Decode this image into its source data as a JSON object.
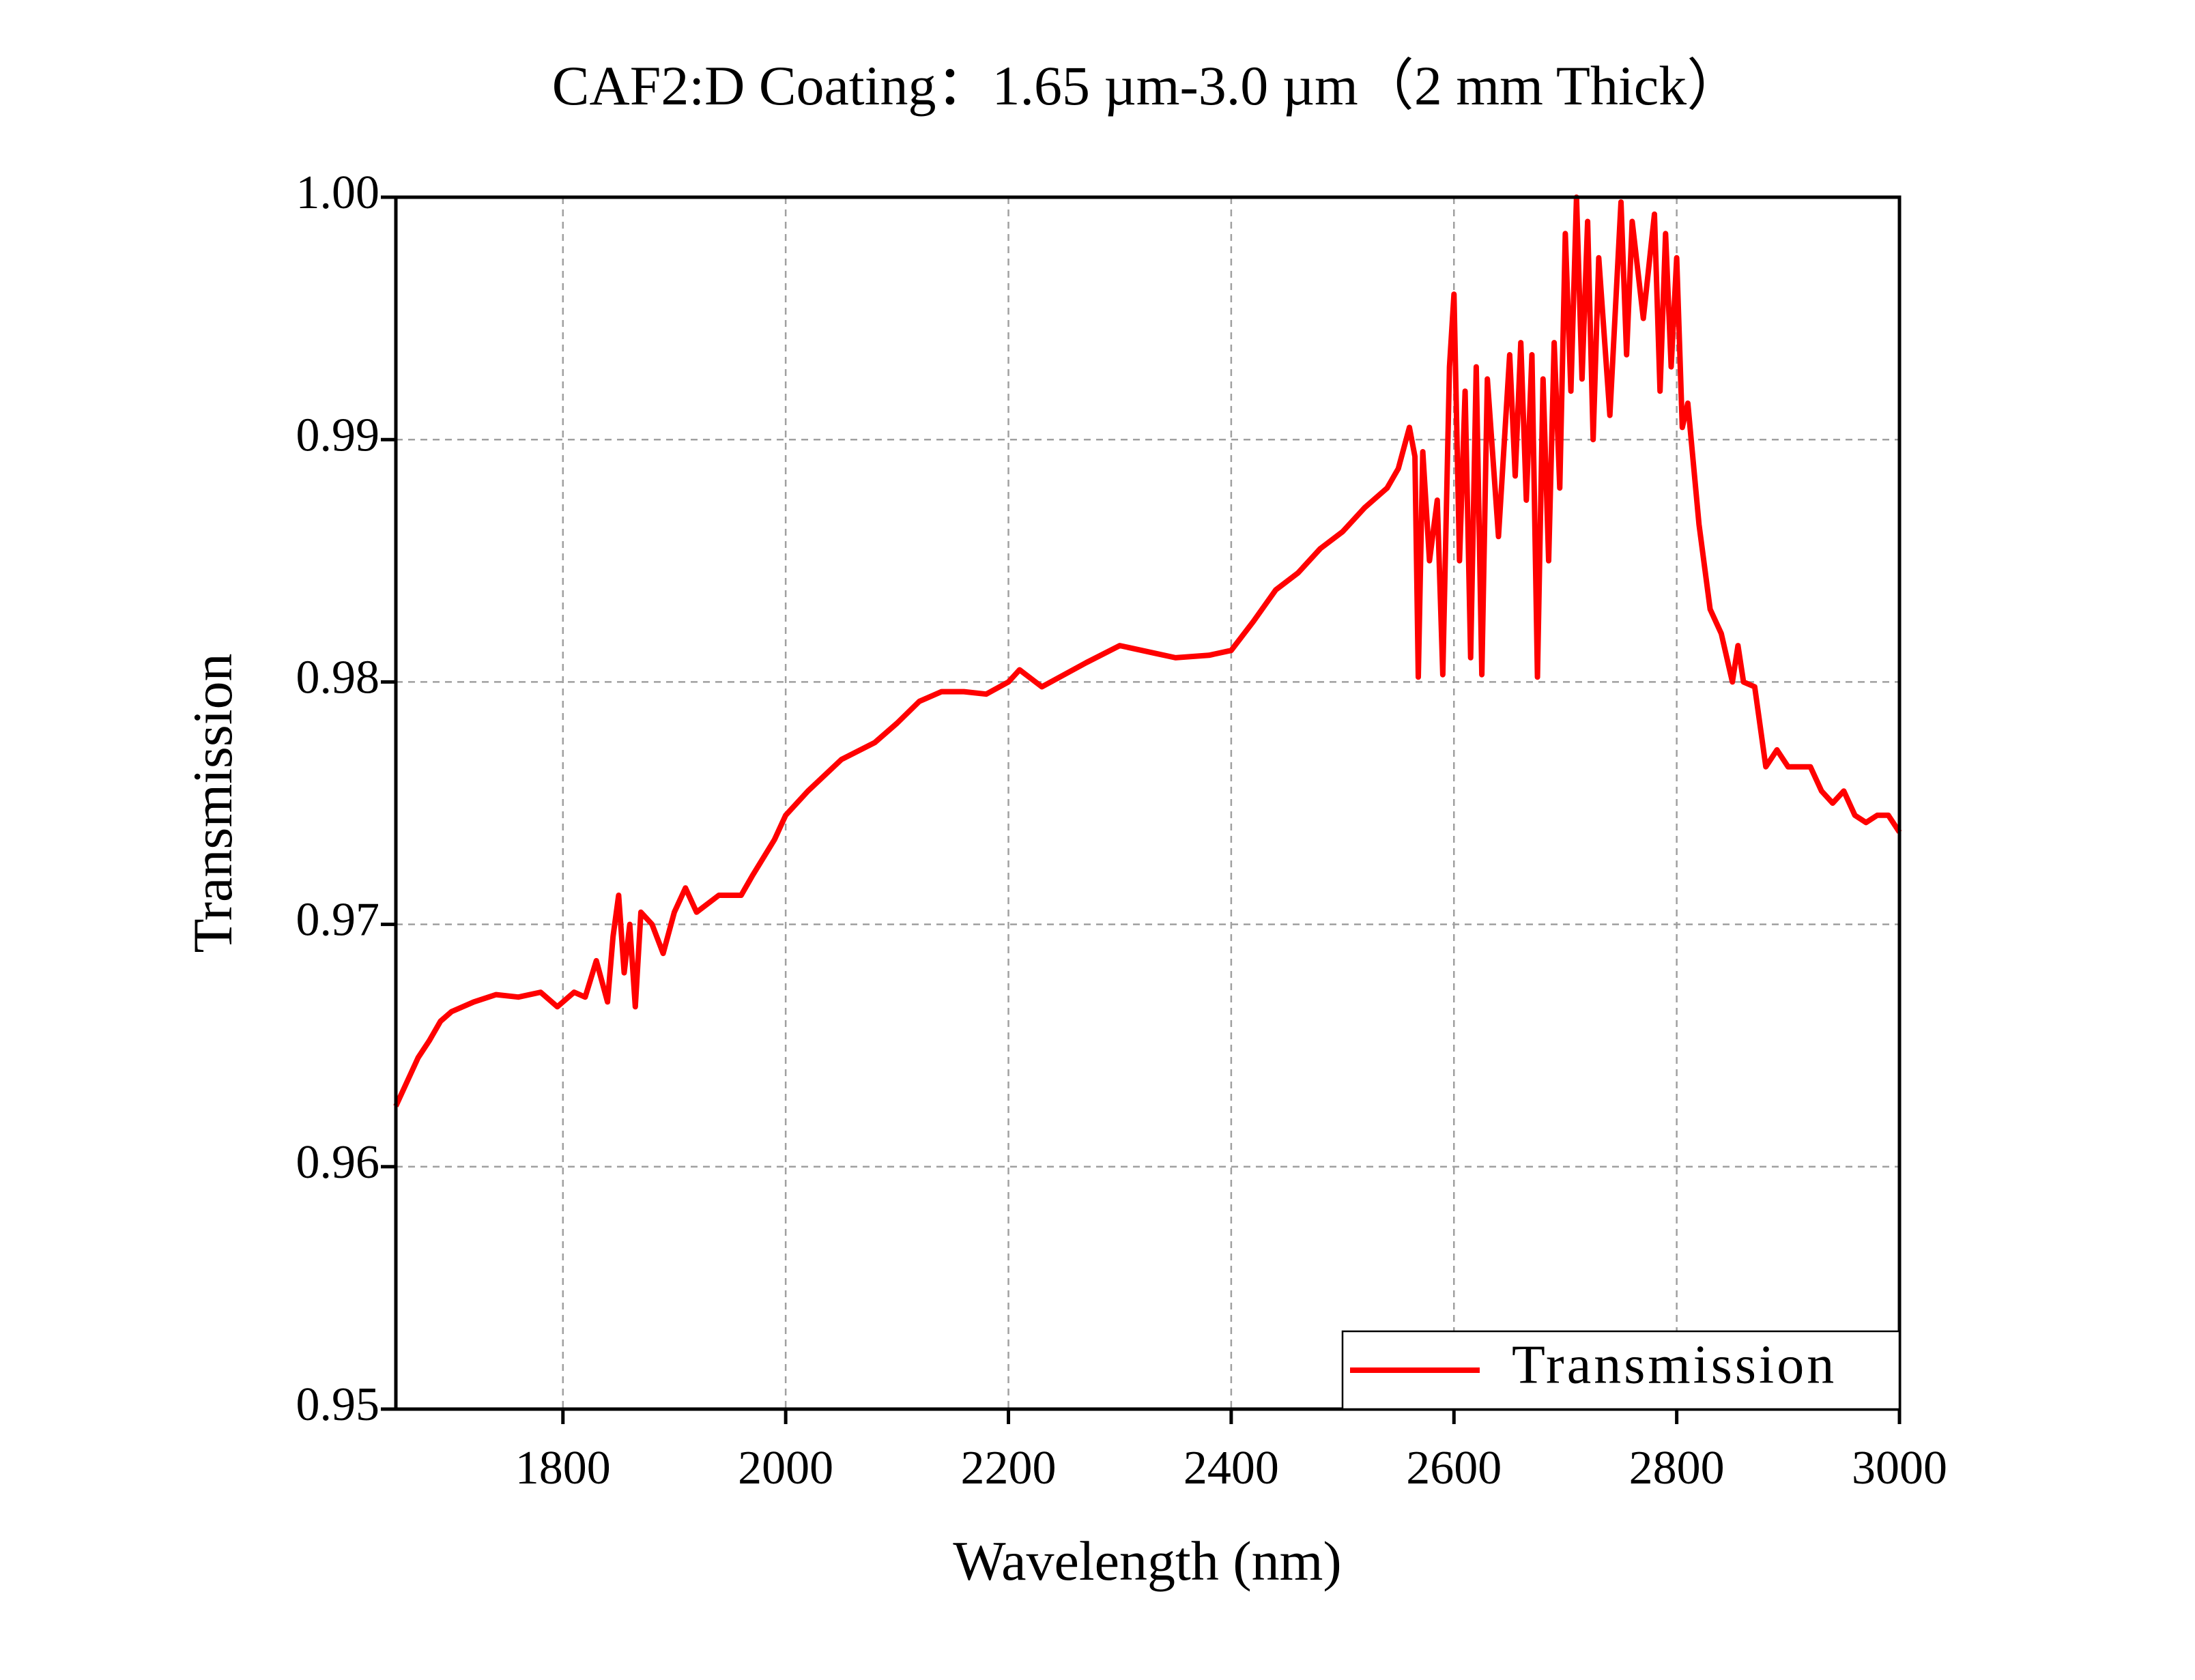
{
  "chart_data": {
    "type": "line",
    "title": "CAF2:D Coating：1.65 µm-3.0 µm（2 mm Thick）",
    "x_label": "Wavelength (nm)",
    "y_label": "Transmission",
    "x": [
      1650,
      1660,
      1670,
      1680,
      1690,
      1700,
      1720,
      1740,
      1760,
      1780,
      1795,
      1810,
      1820,
      1830,
      1840,
      1845,
      1850,
      1855,
      1860,
      1865,
      1870,
      1880,
      1890,
      1900,
      1910,
      1920,
      1940,
      1960,
      1970,
      1990,
      2000,
      2020,
      2050,
      2080,
      2100,
      2120,
      2140,
      2160,
      2180,
      2200,
      2210,
      2230,
      2250,
      2270,
      2300,
      2330,
      2350,
      2380,
      2400,
      2420,
      2440,
      2460,
      2480,
      2500,
      2520,
      2540,
      2550,
      2560,
      2565,
      2568,
      2572,
      2578,
      2585,
      2590,
      2596,
      2600,
      2605,
      2610,
      2615,
      2620,
      2625,
      2630,
      2640,
      2650,
      2655,
      2660,
      2665,
      2670,
      2675,
      2680,
      2685,
      2690,
      2695,
      2700,
      2705,
      2710,
      2715,
      2720,
      2725,
      2730,
      2740,
      2750,
      2755,
      2760,
      2770,
      2780,
      2785,
      2790,
      2795,
      2800,
      2805,
      2810,
      2820,
      2830,
      2840,
      2850,
      2855,
      2860,
      2870,
      2880,
      2890,
      2900,
      2910,
      2920,
      2930,
      2940,
      2950,
      2960,
      2970,
      2980,
      2990,
      3000
    ],
    "series": [
      {
        "name": "Transmission",
        "color": "#ff0000",
        "values": [
          0.9625,
          0.9635,
          0.9645,
          0.9652,
          0.966,
          0.9664,
          0.9668,
          0.9671,
          0.967,
          0.9672,
          0.9666,
          0.9672,
          0.967,
          0.9685,
          0.9668,
          0.9695,
          0.9712,
          0.968,
          0.97,
          0.9666,
          0.9705,
          0.97,
          0.9688,
          0.9705,
          0.9715,
          0.9705,
          0.9712,
          0.9712,
          0.972,
          0.9735,
          0.9745,
          0.9755,
          0.9768,
          0.9775,
          0.9783,
          0.9792,
          0.9796,
          0.9796,
          0.9795,
          0.98,
          0.9805,
          0.9798,
          0.9803,
          0.9808,
          0.9815,
          0.9812,
          0.981,
          0.9811,
          0.9813,
          0.9825,
          0.9838,
          0.9845,
          0.9855,
          0.9862,
          0.9872,
          0.988,
          0.9888,
          0.9905,
          0.9893,
          0.9802,
          0.9895,
          0.985,
          0.9875,
          0.9803,
          0.993,
          0.996,
          0.985,
          0.992,
          0.981,
          0.993,
          0.9803,
          0.9925,
          0.986,
          0.9935,
          0.9885,
          0.994,
          0.9875,
          0.9935,
          0.9802,
          0.9925,
          0.985,
          0.994,
          0.988,
          0.9985,
          0.992,
          1.0,
          0.9925,
          0.999,
          0.99,
          0.9975,
          0.991,
          0.9998,
          0.9935,
          0.999,
          0.995,
          0.9993,
          0.992,
          0.9985,
          0.993,
          0.9975,
          0.9905,
          0.9915,
          0.9865,
          0.983,
          0.982,
          0.98,
          0.9815,
          0.98,
          0.9798,
          0.9765,
          0.9772,
          0.9765,
          0.9765,
          0.9765,
          0.9755,
          0.975,
          0.9755,
          0.9745,
          0.9742,
          0.9745,
          0.9745,
          0.9738
        ]
      }
    ],
    "xlim": [
      1650,
      3000
    ],
    "xticks": [
      1800,
      2000,
      2200,
      2400,
      2600,
      2800,
      3000
    ],
    "ylim": [
      0.95,
      1.0
    ],
    "yticks": [
      0.95,
      0.96,
      0.97,
      0.98,
      0.99,
      {
        "value": 1.0,
        "label": "1.00"
      }
    ],
    "grid": true,
    "legend": "lower right"
  }
}
